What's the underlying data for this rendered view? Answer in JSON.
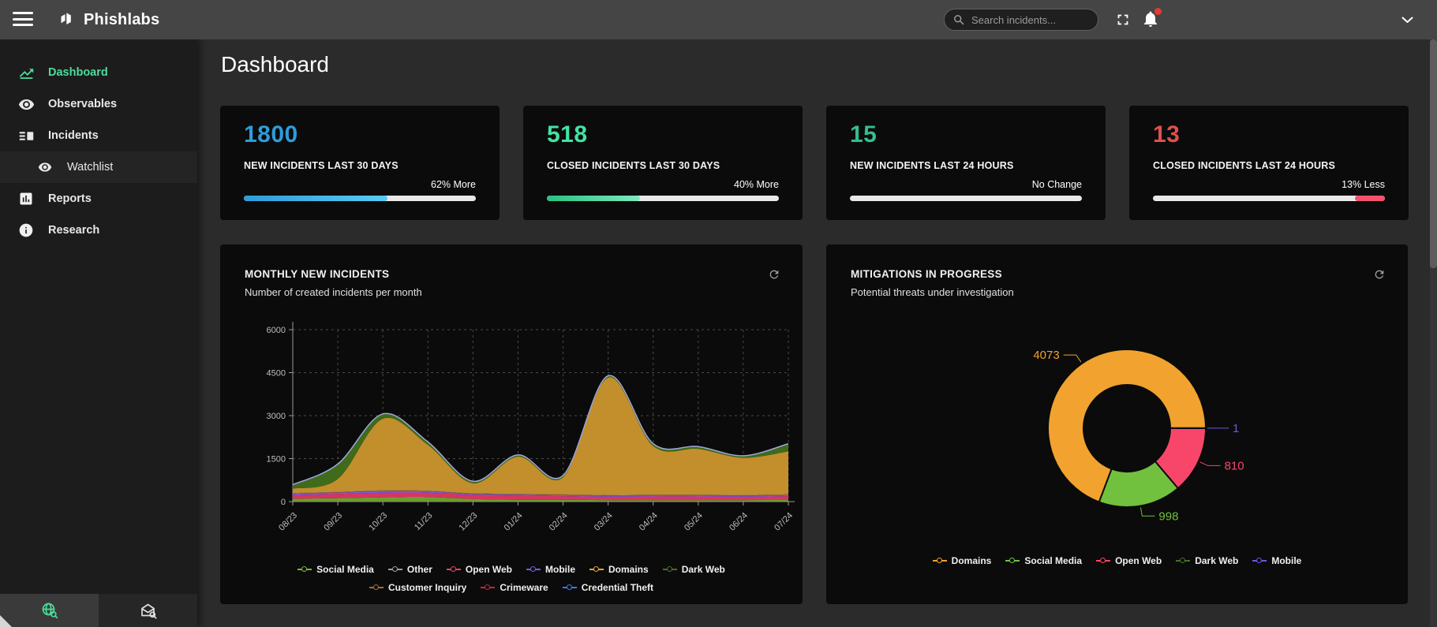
{
  "topbar": {
    "brand": "Phishlabs",
    "search_placeholder": "Search incidents..."
  },
  "page": {
    "title": "Dashboard"
  },
  "sidebar": {
    "items": [
      {
        "label": "Dashboard",
        "active": true
      },
      {
        "label": "Observables"
      },
      {
        "label": "Incidents"
      },
      {
        "label": "Watchlist",
        "child": true
      },
      {
        "label": "Reports"
      },
      {
        "label": "Research"
      }
    ]
  },
  "stat_cards": [
    {
      "value": "1800",
      "value_color": "#2D9CDB",
      "label": "NEW INCIDENTS LAST 30 DAYS",
      "change": "62% More",
      "bar": {
        "percent": 62,
        "colors": [
          "#2D9CDB",
          "#56CCF2"
        ],
        "align": "left"
      }
    },
    {
      "value": "518",
      "value_color": "#42E3A4",
      "label": "CLOSED INCIDENTS LAST 30 DAYS",
      "change": "40% More",
      "bar": {
        "percent": 40,
        "colors": [
          "#27C281",
          "#7EE8BE"
        ],
        "align": "left"
      }
    },
    {
      "value": "15",
      "value_color": "#35BD8D",
      "label": "NEW INCIDENTS LAST 24 HOURS",
      "change": "No Change",
      "bar": {
        "percent": 0,
        "colors": [
          "#E8E8E8",
          "#E8E8E8"
        ],
        "align": "left"
      }
    },
    {
      "value": "13",
      "value_color": "#E0504E",
      "label": "CLOSED INCIDENTS LAST 24 HOURS",
      "change": "13% Less",
      "bar": {
        "percent": 13,
        "colors": [
          "#F4516C",
          "#F4516C"
        ],
        "align": "right"
      }
    }
  ],
  "chart_data": [
    {
      "type": "area",
      "stacked": true,
      "title": "MONTHLY NEW INCIDENTS",
      "subtitle": "Number of created incidents per month",
      "x": [
        "08/23",
        "09/23",
        "10/23",
        "11/23",
        "12/23",
        "01/24",
        "02/24",
        "03/24",
        "04/24",
        "05/24",
        "06/24",
        "07/24"
      ],
      "ylim": [
        0,
        6000
      ],
      "yticks": [
        0,
        1500,
        3000,
        4500,
        6000
      ],
      "grid": "dashed",
      "top_stroke": "#9FA8DA",
      "series": [
        {
          "name": "Social Media",
          "color": "#6B9E2E",
          "values": [
            100,
            120,
            150,
            160,
            90,
            60,
            60,
            50,
            50,
            50,
            50,
            60
          ]
        },
        {
          "name": "Crimeware",
          "color": "#D8355F",
          "values": [
            130,
            150,
            160,
            150,
            140,
            150,
            130,
            120,
            130,
            130,
            120,
            130
          ]
        },
        {
          "name": "Mobile",
          "color": "#7B5BE6",
          "values": [
            40,
            40,
            50,
            40,
            30,
            30,
            30,
            30,
            30,
            30,
            30,
            30
          ]
        },
        {
          "name": "Open Web",
          "color": "#E0485A",
          "values": [
            10,
            10,
            10,
            10,
            10,
            10,
            10,
            10,
            10,
            10,
            10,
            10
          ]
        },
        {
          "name": "Customer Inquiry",
          "color": "#A0703C",
          "values": [
            10,
            10,
            10,
            10,
            10,
            10,
            10,
            10,
            10,
            10,
            10,
            10
          ]
        },
        {
          "name": "Other",
          "color": "#9E9E9E",
          "values": [
            10,
            10,
            10,
            10,
            10,
            10,
            10,
            10,
            10,
            10,
            10,
            10
          ]
        },
        {
          "name": "Domains",
          "color": "#C28F2C",
          "values": [
            150,
            450,
            2500,
            1600,
            350,
            1300,
            600,
            4100,
            1700,
            1600,
            1300,
            1500
          ]
        },
        {
          "name": "Dark Web",
          "color": "#3F6B1B",
          "values": [
            120,
            500,
            150,
            80,
            50,
            40,
            40,
            40,
            60,
            60,
            50,
            250
          ]
        },
        {
          "name": "Credential Theft",
          "color": "#7986CB",
          "values": [
            20,
            20,
            20,
            20,
            20,
            20,
            20,
            20,
            20,
            20,
            20,
            20
          ]
        }
      ],
      "legend": [
        {
          "name": "Social Media",
          "color": "#7CB342"
        },
        {
          "name": "Other",
          "color": "#9E9E9E"
        },
        {
          "name": "Open Web",
          "color": "#E5455C"
        },
        {
          "name": "Mobile",
          "color": "#7B5BE6"
        },
        {
          "name": "Domains",
          "color": "#E8A33D"
        },
        {
          "name": "Dark Web",
          "color": "#4A7023"
        },
        {
          "name": "Customer Inquiry",
          "color": "#A0703C"
        },
        {
          "name": "Crimeware",
          "color": "#C2244A"
        },
        {
          "name": "Credential Theft",
          "color": "#4178E8"
        }
      ]
    },
    {
      "type": "donut",
      "title": "MITIGATIONS IN PROGRESS",
      "subtitle": "Potential threats under investigation",
      "start_angle_deg": 0,
      "slices": [
        {
          "name": "Open Web",
          "value": 810,
          "color": "#F8466B"
        },
        {
          "name": "Social Media",
          "value": 998,
          "color": "#72C13E"
        },
        {
          "name": "Dark Web",
          "value": 0,
          "color": "#4A7023"
        },
        {
          "name": "Domains",
          "value": 4073,
          "color": "#F2A22E"
        },
        {
          "name": "Mobile",
          "value": 1,
          "color": "#6A5AE0"
        }
      ],
      "legend": [
        {
          "name": "Domains",
          "color": "#F2A22E"
        },
        {
          "name": "Social Media",
          "color": "#72C13E"
        },
        {
          "name": "Open Web",
          "color": "#F8466B"
        },
        {
          "name": "Dark Web",
          "color": "#4A7023"
        },
        {
          "name": "Mobile",
          "color": "#6A5AE0"
        }
      ]
    }
  ]
}
